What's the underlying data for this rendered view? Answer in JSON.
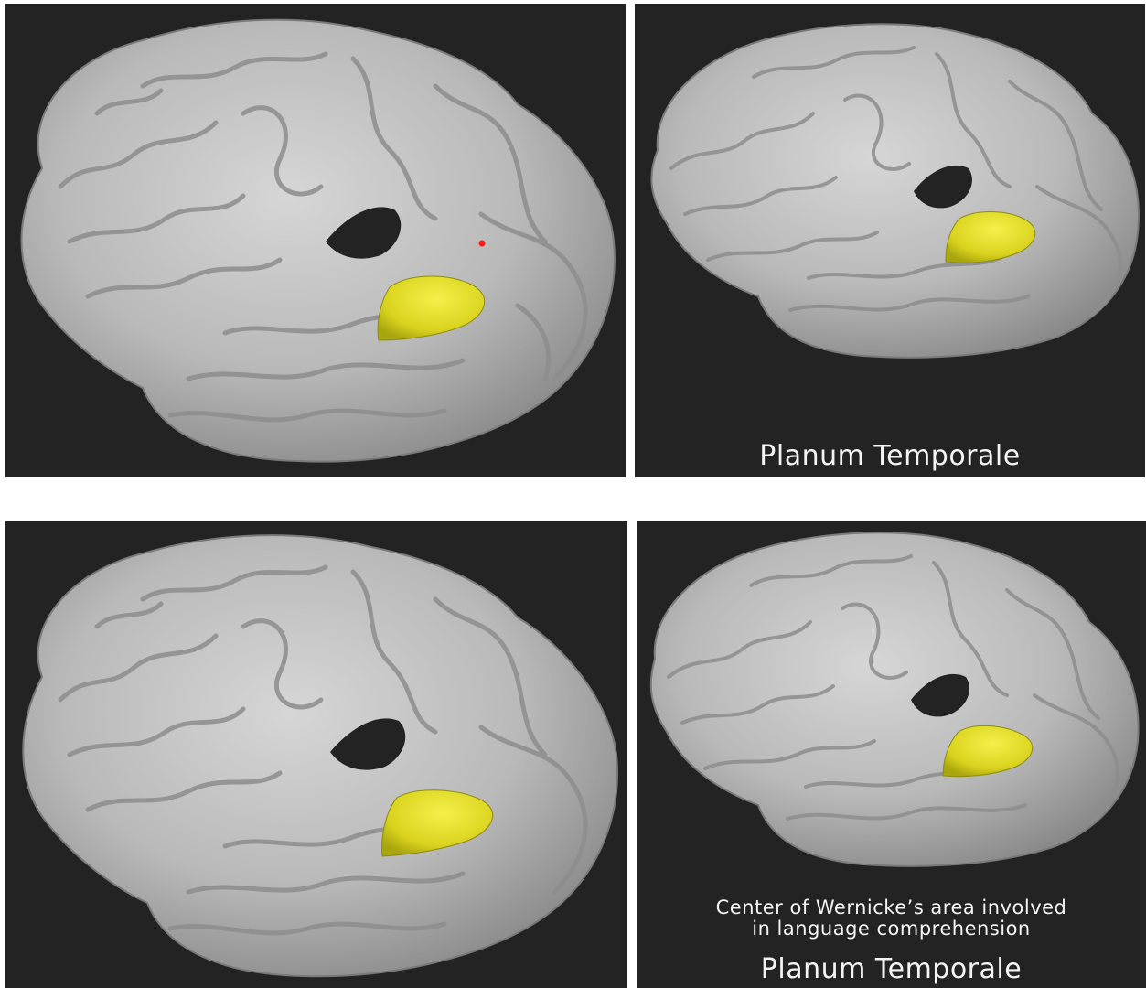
{
  "figure": {
    "panels": [
      {
        "id": "top-left",
        "view": "left-hemisphere-lateral-closeup",
        "highlight_color": "#e5e02a",
        "marker_color": "#ff1a1a",
        "captions": []
      },
      {
        "id": "top-right",
        "view": "left-hemisphere-lateral",
        "highlight_color": "#e5e02a",
        "captions": [
          "Planum Temporale"
        ]
      },
      {
        "id": "bottom-left",
        "view": "left-hemisphere-lateral-closeup",
        "highlight_color": "#e5e02a",
        "captions": []
      },
      {
        "id": "bottom-right",
        "view": "left-hemisphere-lateral",
        "highlight_color": "#e5e02a",
        "captions": [
          "Center of Wernicke’s area involved",
          "in language comprehension",
          "Planum Temporale"
        ]
      }
    ],
    "colors": {
      "background": "#232323",
      "cortex": "#b9b9b9",
      "cortex_shadow": "#6f6f6f",
      "caption_text": "#f4f4f4"
    }
  }
}
